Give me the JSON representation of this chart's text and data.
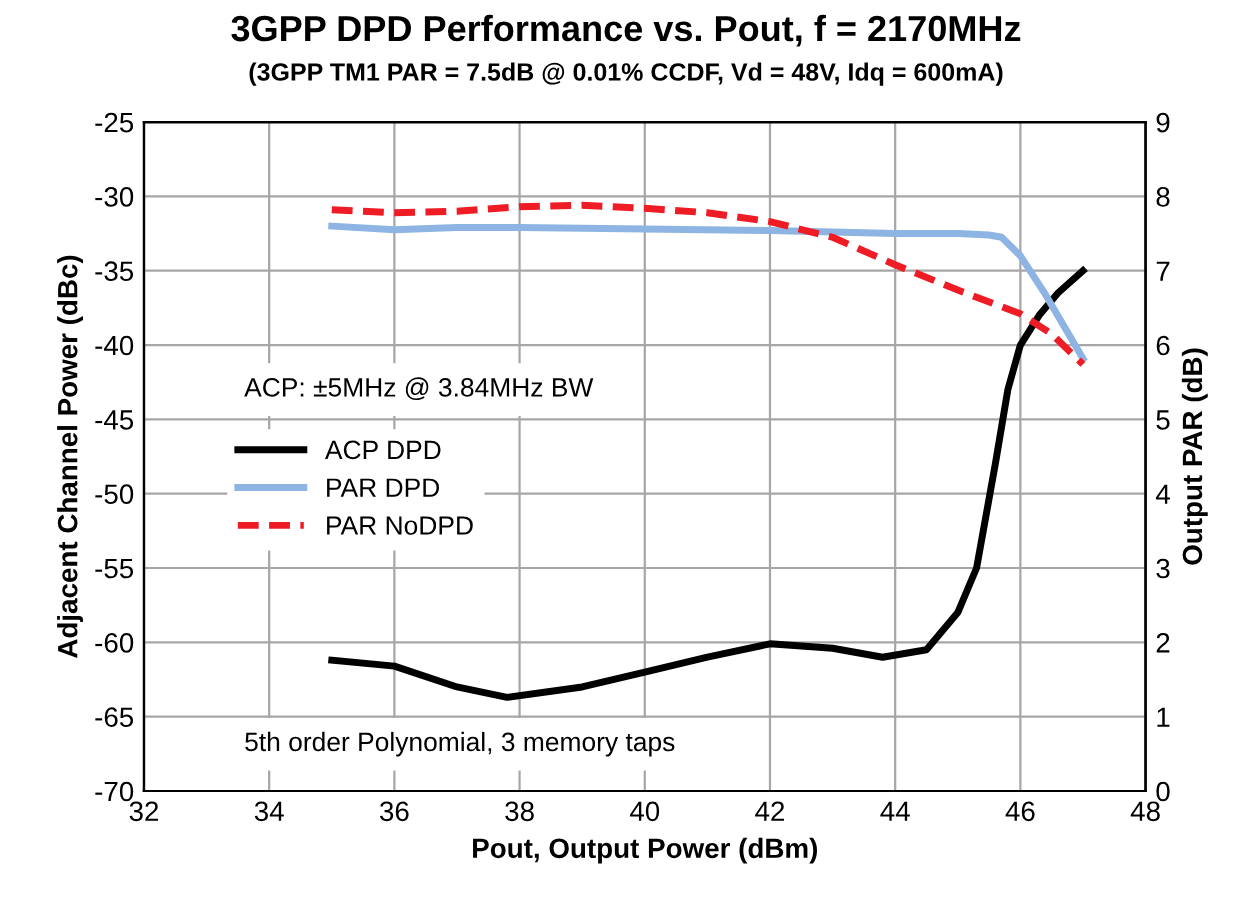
{
  "chart_data": {
    "type": "line",
    "title": "3GPP DPD Performance vs. Pout, f = 2170MHz",
    "subtitle": "(3GPP TM1 PAR = 7.5dB @ 0.01% CCDF, Vd = 48V, Idq = 600mA)",
    "xlabel": "Pout, Output Power (dBm)",
    "ylabel": "Adjacent Channel Power (dBc)",
    "y2label": "Output PAR (dB)",
    "xlim": [
      32,
      48
    ],
    "xticks": [
      32,
      34,
      36,
      38,
      40,
      42,
      44,
      46,
      48
    ],
    "ylim": [
      -70,
      -25
    ],
    "yticks": [
      -70,
      -65,
      -60,
      -55,
      -50,
      -45,
      -40,
      -35,
      -30,
      -25
    ],
    "y2lim": [
      0,
      9
    ],
    "y2ticks": [
      0,
      1,
      2,
      3,
      4,
      5,
      6,
      7,
      8,
      9
    ],
    "grid": true,
    "legend": "left",
    "line_style": "solid",
    "marker": "none",
    "annotations": [
      "ACP: ±5MHz @ 3.84MHz BW",
      "5th order Polynomial, 3 memory taps"
    ],
    "series": [
      {
        "name": "ACP DPD",
        "color": "#000000",
        "x": [
          35,
          36,
          37,
          37.8,
          39,
          40,
          41,
          42,
          43,
          43.8,
          44.5,
          45,
          45.3,
          45.6,
          45.8,
          46,
          46.3,
          46.6,
          47
        ],
        "values": [
          -61.2,
          -61.6,
          -63,
          -63.7,
          -63,
          -62,
          -61,
          -60.1,
          -60.4,
          -61,
          -60.5,
          -58,
          -55,
          -48,
          -43,
          -40,
          -38,
          -36.5,
          -35
        ]
      },
      {
        "name": "PAR DPD",
        "color": "#8eb4e3",
        "axis": "y2",
        "x": [
          35,
          36,
          37,
          38,
          40,
          42,
          44,
          45,
          45.5,
          45.7,
          46,
          46.4,
          47
        ],
        "values": [
          7.6,
          7.55,
          7.58,
          7.58,
          7.56,
          7.54,
          7.5,
          7.5,
          7.48,
          7.45,
          7.2,
          6.68,
          5.82
        ]
      },
      {
        "name": "PAR NoDPD",
        "color": "#ee1c25",
        "axis": "y2",
        "line_style": "dashed",
        "x": [
          35,
          36,
          37,
          38,
          39,
          40,
          41,
          42,
          43,
          44,
          45,
          46,
          46.5,
          47
        ],
        "values": [
          7.82,
          7.78,
          7.8,
          7.86,
          7.88,
          7.84,
          7.78,
          7.66,
          7.45,
          7.08,
          6.74,
          6.42,
          6.15,
          5.74
        ]
      }
    ]
  }
}
